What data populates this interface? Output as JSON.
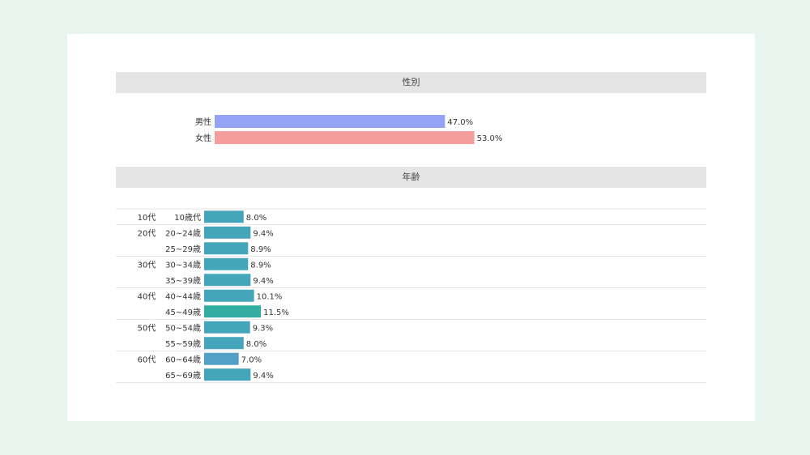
{
  "sections": {
    "gender_title": "性別",
    "age_title": "年齢"
  },
  "chart_data": [
    {
      "type": "bar",
      "orientation": "horizontal",
      "title": "性別",
      "categories": [
        "男性",
        "女性"
      ],
      "values": [
        47.0,
        53.0
      ],
      "value_labels": [
        "47.0%",
        "53.0%"
      ],
      "unit": "%",
      "colors": [
        "#95a3f5",
        "#f59e9e"
      ]
    },
    {
      "type": "bar",
      "orientation": "horizontal",
      "title": "年齢",
      "groups": [
        {
          "name": "10代",
          "categories": [
            "10歳代"
          ],
          "values": [
            8.0
          ],
          "value_labels": [
            "8.0%"
          ]
        },
        {
          "name": "20代",
          "categories": [
            "20~24歳",
            "25~29歳"
          ],
          "values": [
            9.4,
            8.9
          ],
          "value_labels": [
            "9.4%",
            "8.9%"
          ]
        },
        {
          "name": "30代",
          "categories": [
            "30~34歳",
            "35~39歳"
          ],
          "values": [
            8.9,
            9.4
          ],
          "value_labels": [
            "8.9%",
            "9.4%"
          ]
        },
        {
          "name": "40代",
          "categories": [
            "40~44歳",
            "45~49歳"
          ],
          "values": [
            10.1,
            11.5
          ],
          "value_labels": [
            "10.1%",
            "11.5%"
          ]
        },
        {
          "name": "50代",
          "categories": [
            "50~54歳",
            "55~59歳"
          ],
          "values": [
            9.3,
            8.0
          ],
          "value_labels": [
            "9.3%",
            "8.0%"
          ]
        },
        {
          "name": "60代",
          "categories": [
            "60~64歳",
            "65~69歳"
          ],
          "values": [
            7.0,
            9.4
          ],
          "value_labels": [
            "7.0%",
            "9.4%"
          ]
        }
      ],
      "unit": "%",
      "colors": {
        "default": "#45a5ba",
        "highlight": "#33ada2",
        "low": "#52a0c8"
      }
    }
  ]
}
